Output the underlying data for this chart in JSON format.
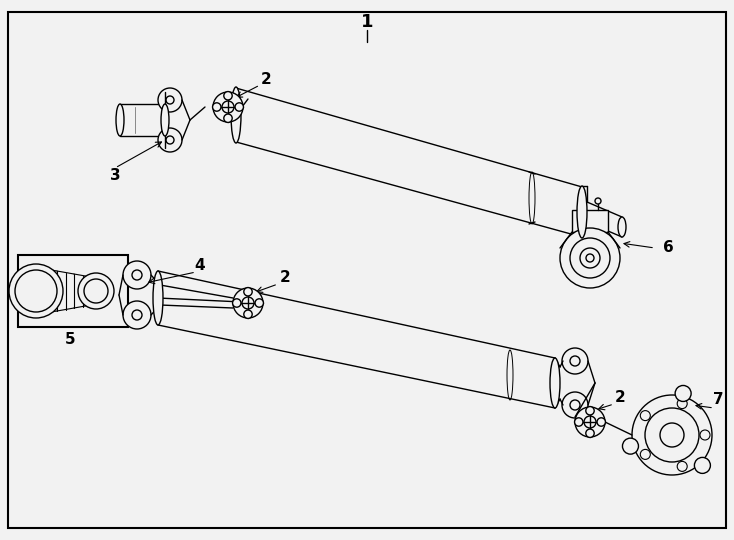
{
  "bg_color": "#f2f2f2",
  "border_color": "#000000",
  "line_color": "#000000",
  "fig_width": 7.34,
  "fig_height": 5.4,
  "lw": 1.0
}
